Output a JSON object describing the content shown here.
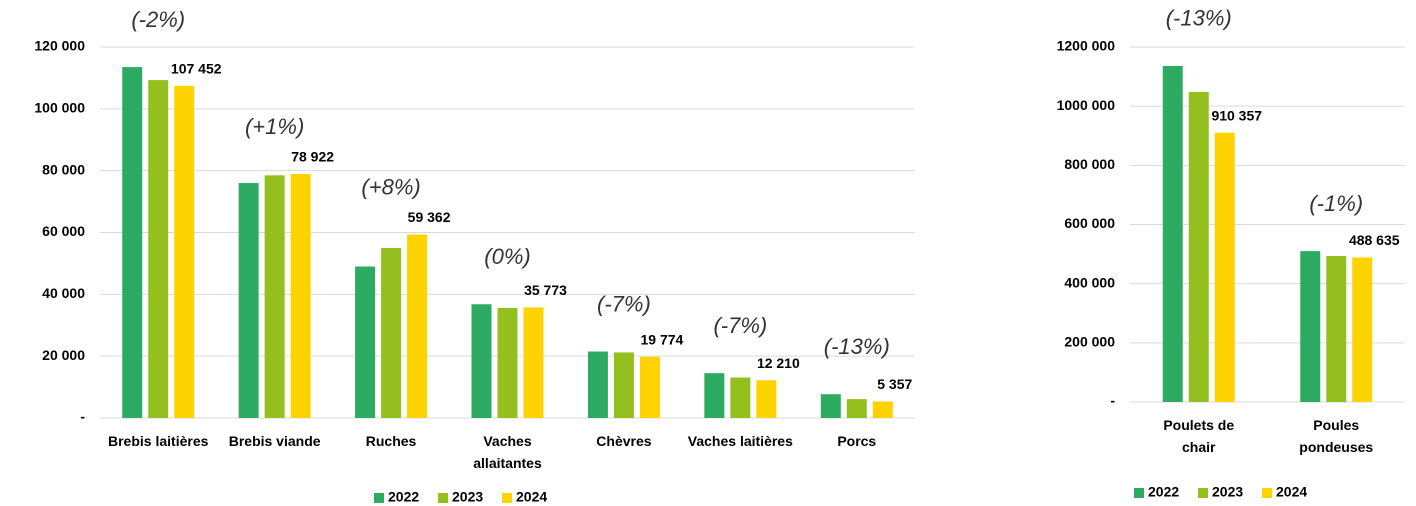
{
  "chart_data": [
    {
      "type": "bar",
      "categories": [
        "Brebis laitières",
        "Brebis viande",
        "Ruches",
        "Vaches allaitantes",
        "Chèvres",
        "Vaches laitières",
        "Porcs"
      ],
      "series": [
        {
          "name": "2022",
          "color": "#2eab62",
          "values": [
            113500,
            76000,
            49000,
            36800,
            21500,
            14500,
            7700
          ]
        },
        {
          "name": "2023",
          "color": "#93c01f",
          "values": [
            109300,
            78500,
            55000,
            35600,
            21200,
            13100,
            6100
          ]
        },
        {
          "name": "2024",
          "color": "#ffd300",
          "values": [
            107452,
            78922,
            59362,
            35773,
            19774,
            12210,
            5357
          ],
          "value_labels": [
            "107 452",
            "78 922",
            "59 362",
            "35 773",
            "19 774",
            "12 210",
            "5 357"
          ]
        }
      ],
      "annotations": [
        "(-2%)",
        "(+1%)",
        "(+8%)",
        "(0%)",
        "(-7%)",
        "(-7%)",
        "(-13%)"
      ],
      "ylim": [
        0,
        120000
      ],
      "yticks": [
        {
          "value": 0,
          "label": "-"
        },
        {
          "value": 20000,
          "label": "20 000"
        },
        {
          "value": 40000,
          "label": "40 000"
        },
        {
          "value": 60000,
          "label": "60 000"
        },
        {
          "value": 80000,
          "label": "80 000"
        },
        {
          "value": 100000,
          "label": "100 000"
        },
        {
          "value": 120000,
          "label": "120 000"
        }
      ],
      "grid": true,
      "legend": "bottom"
    },
    {
      "type": "bar",
      "categories": [
        "Poulets de chair",
        "Poules pondeuses"
      ],
      "series": [
        {
          "name": "2022",
          "color": "#2eab62",
          "values": [
            1136000,
            510000
          ]
        },
        {
          "name": "2023",
          "color": "#93c01f",
          "values": [
            1048000,
            493500
          ]
        },
        {
          "name": "2024",
          "color": "#ffd300",
          "values": [
            910357,
            488635
          ],
          "value_labels": [
            "910 357",
            "488 635"
          ]
        }
      ],
      "annotations": [
        "(-13%)",
        "(-1%)"
      ],
      "ylim": [
        0,
        1200000
      ],
      "yticks": [
        {
          "value": 0,
          "label": "-"
        },
        {
          "value": 200000,
          "label": "200 000"
        },
        {
          "value": 400000,
          "label": "400 000"
        },
        {
          "value": 600000,
          "label": "600 000"
        },
        {
          "value": 800000,
          "label": "800 000"
        },
        {
          "value": 1000000,
          "label": "1000 000"
        },
        {
          "value": 1200000,
          "label": "1200 000"
        }
      ],
      "grid": true,
      "legend": "bottom"
    }
  ]
}
